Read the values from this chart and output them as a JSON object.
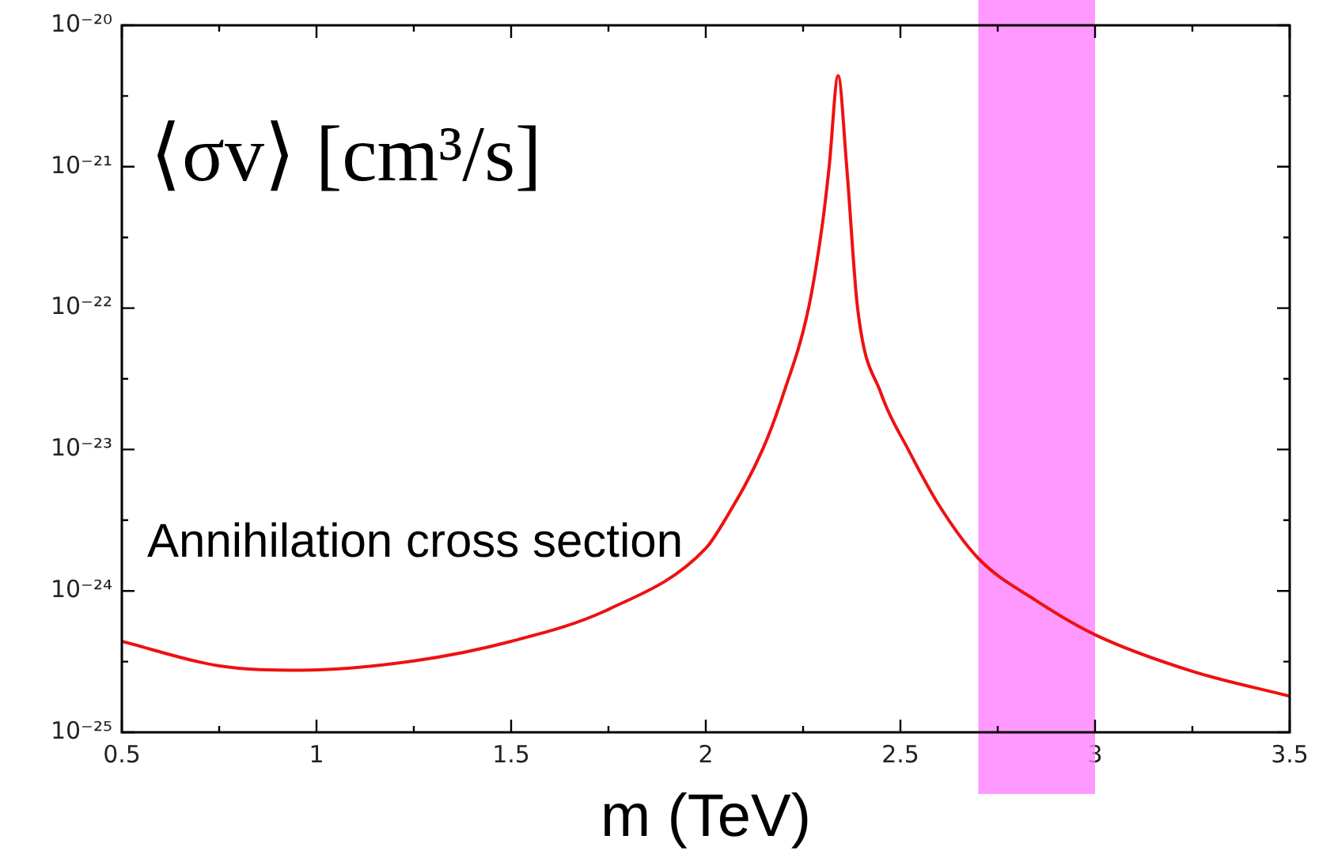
{
  "chart_data": {
    "type": "line",
    "xlabel": "m (TeV)",
    "ylabel": "⟨σv⟩ [cm³/s]",
    "annotations": [
      "Annihilation cross section"
    ],
    "x": [
      0.5,
      0.75,
      0.96,
      1.25,
      1.5,
      1.75,
      2.0,
      2.05,
      2.146,
      2.2,
      2.264,
      2.3,
      2.317,
      2.34,
      2.362,
      2.39,
      2.45,
      2.52,
      2.6,
      2.7,
      2.85,
      3.0,
      3.25,
      3.5
    ],
    "series": [
      {
        "color": "#ee1111",
        "values": [
          4.4e-25,
          2.95e-25,
          2.75e-25,
          3.2e-25,
          4.4e-25,
          7.4e-25,
          2e-24,
          3.2e-24,
          1e-23,
          2.5e-23,
          1e-22,
          4e-22,
          1e-21,
          4.4e-21,
          1e-21,
          1e-22,
          2.5e-23,
          1e-23,
          4e-24,
          1.7e-24,
          8.5e-25,
          4.9e-25,
          2.7e-25,
          1.8e-25
        ]
      }
    ],
    "log": "y",
    "xlim": [
      0.5,
      3.5
    ],
    "xticks": [
      0.5,
      1,
      1.5,
      2,
      2.5,
      3,
      3.5
    ],
    "ylim": [
      1e-25,
      1e-20
    ],
    "yticks": [
      {
        "value": 1e-25,
        "label": "10⁻²⁵"
      },
      {
        "value": 1e-24,
        "label": "10⁻²⁴"
      },
      {
        "value": 1e-23,
        "label": "10⁻²³"
      },
      {
        "value": 1e-22,
        "label": "10⁻²²"
      },
      {
        "value": 1e-21,
        "label": "10⁻²¹"
      },
      {
        "value": 1e-20,
        "label": "10⁻²⁰"
      }
    ],
    "bands": [
      {
        "axis": "x",
        "from": 2.7,
        "to": 3.0,
        "color": "#ff80ff"
      }
    ],
    "grid": false,
    "legend": false,
    "marker": "none",
    "line_style": "solid"
  }
}
